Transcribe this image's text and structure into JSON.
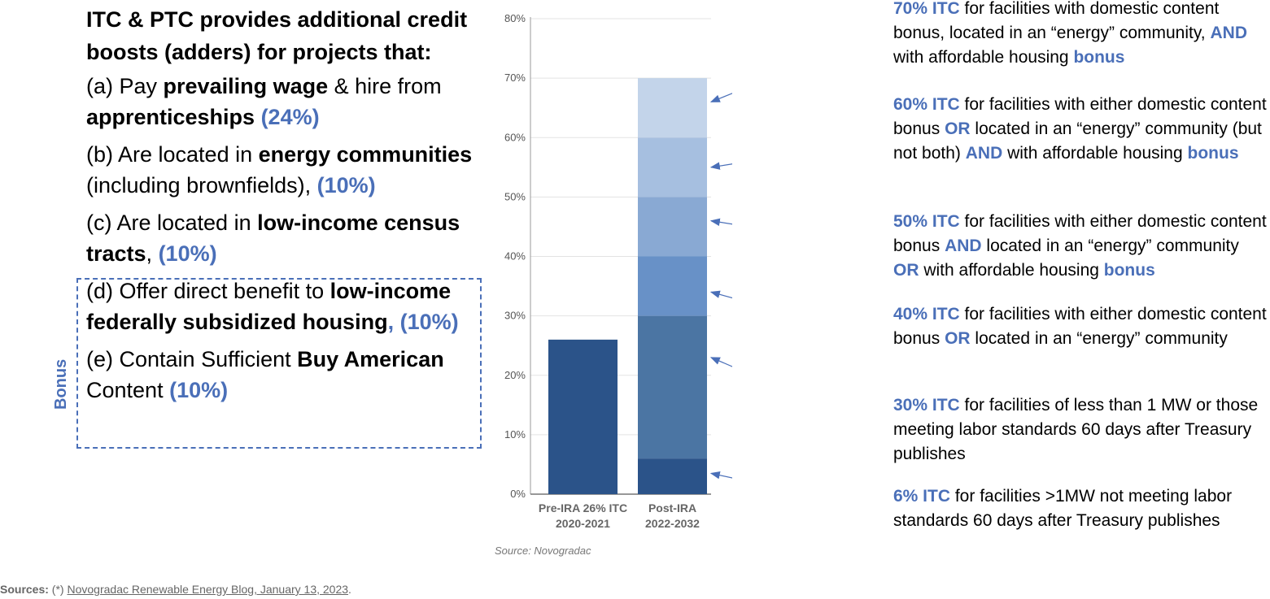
{
  "left_panel": {
    "heading": "ITC & PTC provides additional credit boosts (adders) for projects that:",
    "items": [
      {
        "parts": [
          {
            "t": "(a) Pay ",
            "b": false
          },
          {
            "t": "prevailing wage",
            "b": true
          },
          {
            "t": " & hire from  ",
            "b": false
          },
          {
            "t": "apprenticeships",
            "b": true
          },
          {
            "t": " (24%)",
            "pct": true
          }
        ]
      },
      {
        "parts": [
          {
            "t": "(b) Are located in ",
            "b": false
          },
          {
            "t": "energy communities",
            "b": true
          },
          {
            "t": " (including brownfields), ",
            "b": false
          },
          {
            "t": "(10%)",
            "pct": true
          }
        ]
      },
      {
        "parts": [
          {
            "t": "(c) Are located in ",
            "b": false
          },
          {
            "t": "low-income census tracts",
            "b": true
          },
          {
            "t": ", ",
            "b": false
          },
          {
            "t": "(10%)",
            "pct": true
          }
        ]
      },
      {
        "parts": [
          {
            "t": "(d) Offer direct benefit to ",
            "b": false
          },
          {
            "t": "low-income federally subsidized housing",
            "b": true
          },
          {
            "t": ", (10%)",
            "pct": true
          }
        ]
      },
      {
        "parts": [
          {
            "t": "(e) Contain Sufficient ",
            "b": false
          },
          {
            "t": "Buy American",
            "b": true
          },
          {
            "t": " Content ",
            "b": false
          },
          {
            "t": "(10%)",
            "pct": true
          }
        ]
      }
    ],
    "bonus_label": "Bonus"
  },
  "chart_data": {
    "type": "bar",
    "stacked": true,
    "categories": [
      "Pre-IRA 26% ITC 2020-2021",
      "Post-IRA 2022-2032"
    ],
    "category_lines": [
      [
        "Pre-IRA 26% ITC",
        "2020-2021"
      ],
      [
        "Post-IRA",
        "2022-2032"
      ]
    ],
    "series": [
      {
        "values": [
          26,
          6
        ],
        "color": "#2b5389"
      },
      {
        "values": [
          0,
          24
        ],
        "color": "#4b75a3"
      },
      {
        "values": [
          0,
          10
        ],
        "color": "#6891c7"
      },
      {
        "values": [
          0,
          10
        ],
        "color": "#89a9d3"
      },
      {
        "values": [
          0,
          10
        ],
        "color": "#a6bfe0"
      },
      {
        "values": [
          0,
          10
        ],
        "color": "#c3d4ea"
      }
    ],
    "yticks": [
      "0%",
      "10%",
      "20%",
      "30%",
      "40%",
      "50%",
      "60%",
      "70%",
      "80%"
    ],
    "ylim": [
      0,
      80
    ],
    "grid": true,
    "source_note": "Source: Novogradac"
  },
  "annotations": [
    {
      "key": "70% ITC",
      "parts": [
        {
          "t": " for facilities with domestic content bonus, located in an “energy” community, "
        },
        {
          "t": "AND",
          "k": true
        },
        {
          "t": " with affordable housing "
        },
        {
          "t": "bonus",
          "k": true
        }
      ],
      "target": 66
    },
    {
      "key": "60% ITC",
      "parts": [
        {
          "t": " for facilities with either domestic content bonus "
        },
        {
          "t": "OR",
          "k": true
        },
        {
          "t": " located in an “energy” community (but not both) "
        },
        {
          "t": "AND",
          "k": true
        },
        {
          "t": " with affordable housing "
        },
        {
          "t": "bonus",
          "k": true
        }
      ],
      "target": 55
    },
    {
      "key": "50% ITC",
      "parts": [
        {
          "t": " for facilities with either domestic content bonus "
        },
        {
          "t": "AND",
          "k": true
        },
        {
          "t": " located in an “energy” community "
        },
        {
          "t": "OR",
          "k": true
        },
        {
          "t": " with affordable housing "
        },
        {
          "t": "bonus",
          "k": true
        }
      ],
      "target": 46
    },
    {
      "key": "40% ITC",
      "parts": [
        {
          "t": " for facilities with either domestic content bonus "
        },
        {
          "t": "OR",
          "k": true
        },
        {
          "t": " located in an “energy” community"
        }
      ],
      "target": 34
    },
    {
      "key": "30% ITC",
      "parts": [
        {
          "t": " for facilities of less than 1 MW or those meeting labor standards 60 days after Treasury publishes"
        }
      ],
      "target": 23
    },
    {
      "key": "6% ITC",
      "parts": [
        {
          "t": " for facilities >1MW not meeting labor standards 60 days after Treasury publishes"
        }
      ],
      "target": 3.5
    }
  ],
  "footer": {
    "label": "Sources:",
    "prefix": " (*) ",
    "link": "Novogradac Renewable Energy Blog, January 13, 2023",
    "suffix": "."
  },
  "colors": {
    "accent": "#4a6fb8",
    "arrow": "#4a6fb8"
  }
}
